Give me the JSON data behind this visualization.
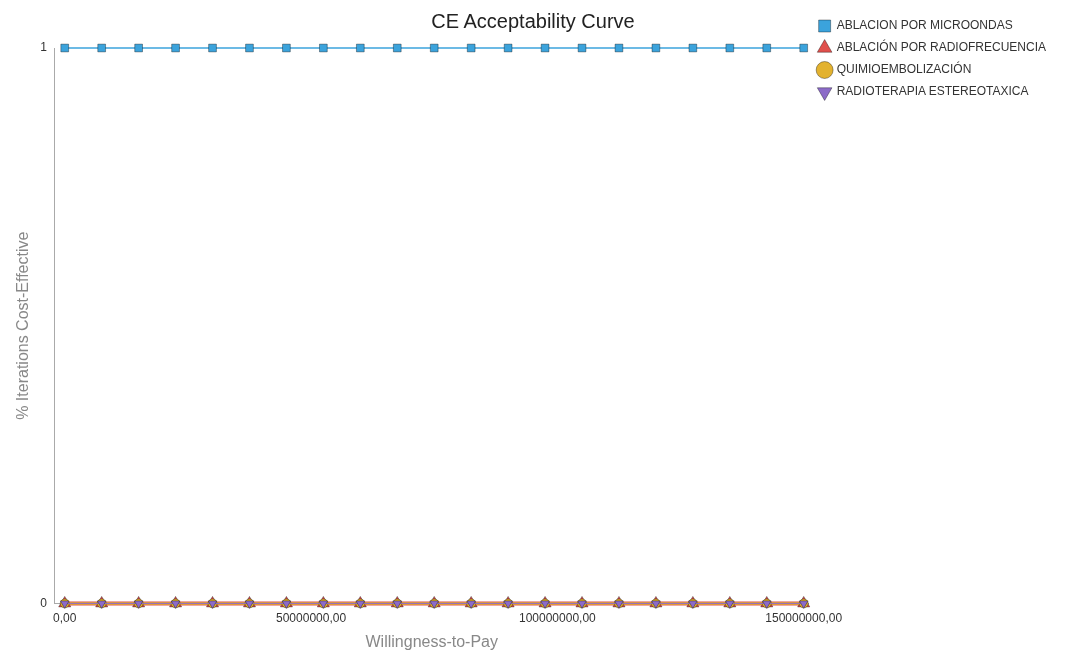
{
  "chart_data": {
    "type": "line",
    "title": "CE Acceptability Curve",
    "xlabel": "Willingness-to-Pay",
    "ylabel": "% Iterations Cost-Effective",
    "x": [
      0,
      7500000,
      15000000,
      22500000,
      30000000,
      37500000,
      45000000,
      52500000,
      60000000,
      67500000,
      75000000,
      82500000,
      90000000,
      97500000,
      105000000,
      112500000,
      120000000,
      127500000,
      135000000,
      142500000,
      150000000
    ],
    "series": [
      {
        "name": "ABLACION POR MICROONDAS",
        "color": "#3ba3dc",
        "marker": "square",
        "values": [
          1,
          1,
          1,
          1,
          1,
          1,
          1,
          1,
          1,
          1,
          1,
          1,
          1,
          1,
          1,
          1,
          1,
          1,
          1,
          1,
          1
        ]
      },
      {
        "name": "ABLACIÓN POR RADIOFRECUENCIA",
        "color": "#e0504c",
        "marker": "triangle",
        "values": [
          0,
          0,
          0,
          0,
          0,
          0,
          0,
          0,
          0,
          0,
          0,
          0,
          0,
          0,
          0,
          0,
          0,
          0,
          0,
          0,
          0
        ]
      },
      {
        "name": "QUIMIOEMBOLIZACIÓN",
        "color": "#e3b22f",
        "marker": "circle",
        "values": [
          0,
          0,
          0,
          0,
          0,
          0,
          0,
          0,
          0,
          0,
          0,
          0,
          0,
          0,
          0,
          0,
          0,
          0,
          0,
          0,
          0
        ]
      },
      {
        "name": "RADIOTERAPIA ESTEREOTAXICA",
        "color": "#8c6bc8",
        "marker": "triangle-down",
        "values": [
          0,
          0,
          0,
          0,
          0,
          0,
          0,
          0,
          0,
          0,
          0,
          0,
          0,
          0,
          0,
          0,
          0,
          0,
          0,
          0,
          0
        ]
      }
    ],
    "xlim": [
      -2000000,
      151000000
    ],
    "xticks": [
      {
        "value": 0,
        "label": "0,00"
      },
      {
        "value": 50000000,
        "label": "50000000,00"
      },
      {
        "value": 100000000,
        "label": "100000000,00"
      },
      {
        "value": 150000000,
        "label": "150000000,00"
      }
    ],
    "ylim": [
      0,
      1
    ],
    "yticks": [
      0,
      1
    ],
    "grid": false,
    "legend": "top right"
  }
}
